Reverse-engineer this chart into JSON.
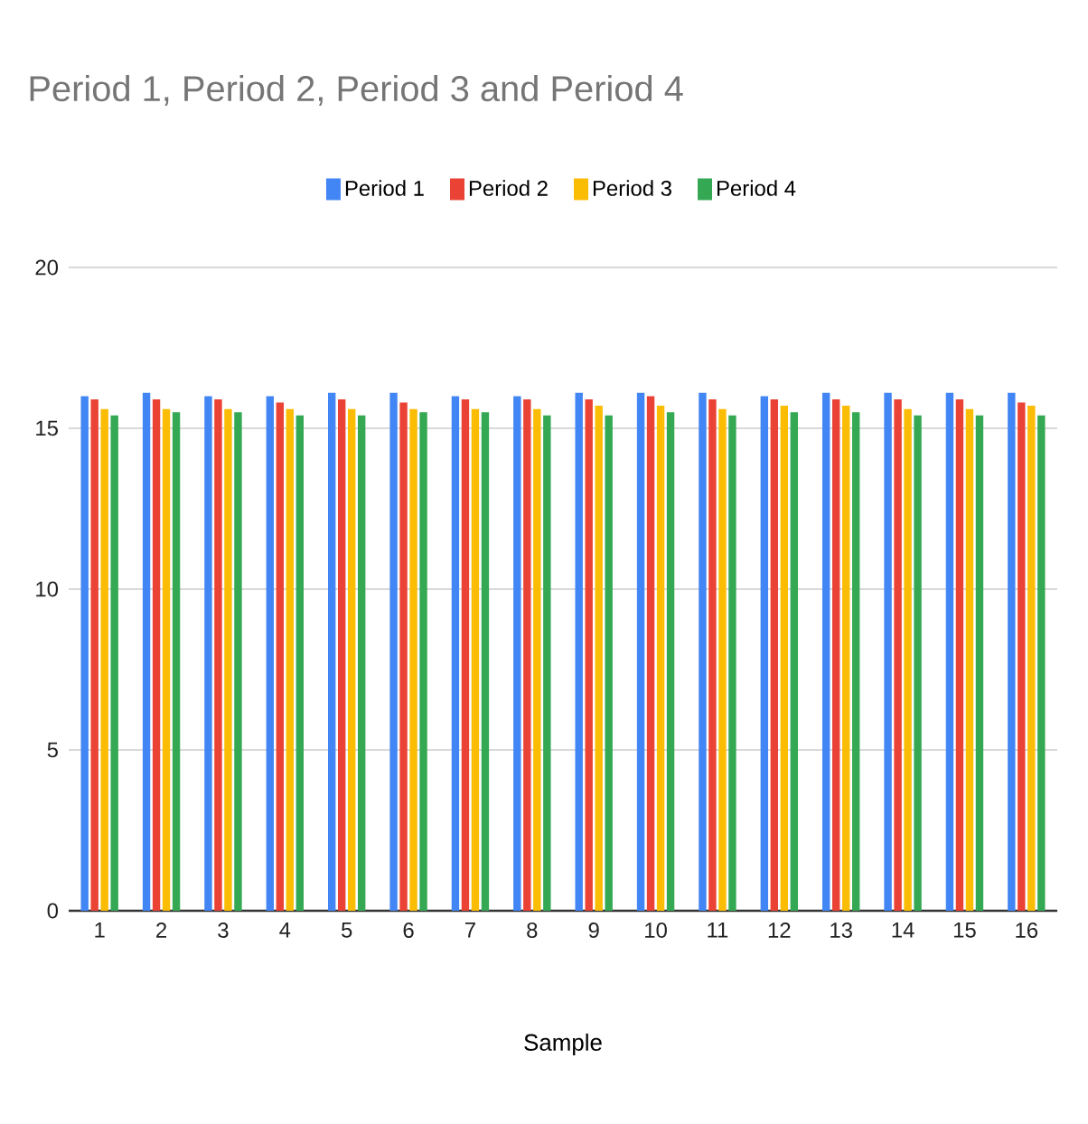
{
  "chart_data": {
    "type": "bar",
    "title": "Period 1, Period 2, Period 3 and Period 4",
    "xlabel": "Sample",
    "categories": [
      "1",
      "2",
      "3",
      "4",
      "5",
      "6",
      "7",
      "8",
      "9",
      "10",
      "11",
      "12",
      "13",
      "14",
      "15",
      "16"
    ],
    "series": [
      {
        "name": "Period 1",
        "color": "#4285f4",
        "values": [
          16.0,
          16.1,
          16.0,
          16.0,
          16.1,
          16.1,
          16.0,
          16.0,
          16.1,
          16.1,
          16.1,
          16.0,
          16.1,
          16.1,
          16.1,
          16.1
        ]
      },
      {
        "name": "Period 2",
        "color": "#ea4335",
        "values": [
          15.9,
          15.9,
          15.9,
          15.8,
          15.9,
          15.8,
          15.9,
          15.9,
          15.9,
          16.0,
          15.9,
          15.9,
          15.9,
          15.9,
          15.9,
          15.8
        ]
      },
      {
        "name": "Period 3",
        "color": "#fbbc04",
        "values": [
          15.6,
          15.6,
          15.6,
          15.6,
          15.6,
          15.6,
          15.6,
          15.6,
          15.7,
          15.7,
          15.6,
          15.7,
          15.7,
          15.6,
          15.6,
          15.7
        ]
      },
      {
        "name": "Period 4",
        "color": "#34a853",
        "values": [
          15.4,
          15.5,
          15.5,
          15.4,
          15.4,
          15.5,
          15.5,
          15.4,
          15.4,
          15.5,
          15.4,
          15.5,
          15.5,
          15.4,
          15.4,
          15.4
        ]
      }
    ],
    "ylim": [
      0,
      20
    ],
    "yticks": [
      0,
      5,
      10,
      15,
      20
    ],
    "grid": "y",
    "legend": "top"
  }
}
